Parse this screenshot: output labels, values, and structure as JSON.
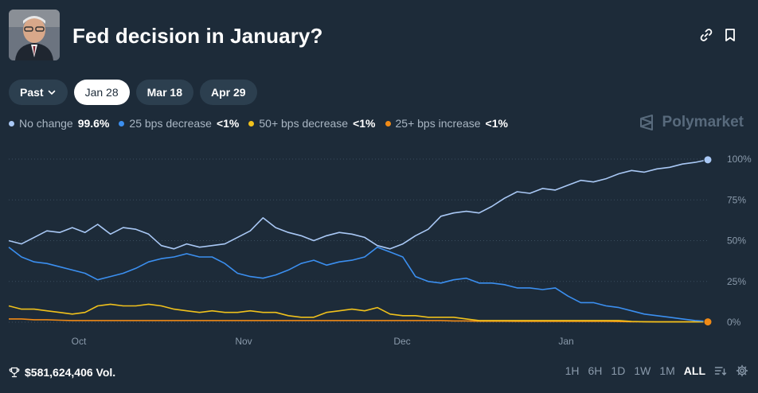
{
  "header": {
    "title": "Fed decision in January?"
  },
  "tabs": [
    {
      "label": "Past",
      "has_dropdown": true,
      "active": false
    },
    {
      "label": "Jan 28",
      "active": true
    },
    {
      "label": "Mar 18",
      "active": false
    },
    {
      "label": "Apr 29",
      "active": false
    }
  ],
  "legend": [
    {
      "label": "No change",
      "value": "99.6%",
      "color": "#a9c8f5"
    },
    {
      "label": "25 bps decrease",
      "value": "<1%",
      "color": "#3b8ff0"
    },
    {
      "label": "50+ bps decrease",
      "value": "<1%",
      "color": "#f0c11c"
    },
    {
      "label": "25+ bps increase",
      "value": "<1%",
      "color": "#f08a16"
    }
  ],
  "brand": {
    "name": "Polymarket"
  },
  "chart_data": {
    "type": "line",
    "x_ticks": [
      "Oct",
      "Nov",
      "Dec",
      "Jan"
    ],
    "y_ticks": [
      "100%",
      "75%",
      "50%",
      "25%",
      "0%"
    ],
    "ylim": [
      0,
      100
    ],
    "grid": true,
    "series": [
      {
        "name": "No change",
        "color": "#a9c8f5",
        "values": [
          50,
          48,
          52,
          56,
          55,
          58,
          55,
          60,
          54,
          58,
          57,
          54,
          47,
          45,
          48,
          46,
          47,
          48,
          52,
          56,
          64,
          58,
          55,
          53,
          50,
          53,
          55,
          54,
          52,
          47,
          45,
          48,
          53,
          57,
          65,
          67,
          68,
          67,
          71,
          76,
          80,
          79,
          82,
          81,
          84,
          87,
          86,
          88,
          91,
          93,
          92,
          94,
          95,
          97,
          98,
          99.6
        ]
      },
      {
        "name": "25 bps decrease",
        "color": "#3b8ff0",
        "values": [
          46,
          40,
          37,
          36,
          34,
          32,
          30,
          26,
          28,
          30,
          33,
          37,
          39,
          40,
          42,
          40,
          40,
          36,
          30,
          28,
          27,
          29,
          32,
          36,
          38,
          35,
          37,
          38,
          40,
          46,
          43,
          40,
          28,
          25,
          24,
          26,
          27,
          24,
          24,
          23,
          21,
          21,
          20,
          21,
          16,
          12,
          12,
          10,
          9,
          7,
          5,
          4,
          3,
          2,
          1,
          0.5
        ]
      },
      {
        "name": "50+ bps decrease",
        "color": "#f0c11c",
        "values": [
          10,
          8,
          8,
          7,
          6,
          5,
          6,
          10,
          11,
          10,
          10,
          11,
          10,
          8,
          7,
          6,
          7,
          6,
          6,
          7,
          6,
          6,
          4,
          3,
          3,
          6,
          7,
          8,
          7,
          9,
          5,
          4,
          4,
          3,
          3,
          3,
          2,
          1,
          1,
          1,
          1,
          1,
          1,
          1,
          1,
          1,
          1,
          1,
          1,
          0.5,
          0.3,
          0.2,
          0.2,
          0.2,
          0.2,
          0.2
        ]
      },
      {
        "name": "25+ bps increase",
        "color": "#f08a16",
        "values": [
          2,
          2,
          1.5,
          1.5,
          1.2,
          1,
          1,
          1,
          1,
          1,
          1,
          1,
          1,
          1,
          1,
          1,
          1,
          1,
          1,
          1,
          1,
          1,
          1,
          1,
          1,
          1,
          1,
          1,
          1,
          1,
          1,
          1,
          1,
          1,
          1,
          0.8,
          0.8,
          0.6,
          0.6,
          0.6,
          0.5,
          0.5,
          0.5,
          0.5,
          0.5,
          0.5,
          0.5,
          0.5,
          0.4,
          0.3,
          0.3,
          0.2,
          0.2,
          0.2,
          0.2,
          0.2
        ]
      }
    ]
  },
  "footer": {
    "volume": "$581,624,406 Vol.",
    "ranges": [
      "1H",
      "6H",
      "1D",
      "1W",
      "1M",
      "ALL"
    ],
    "active_range": "ALL"
  }
}
